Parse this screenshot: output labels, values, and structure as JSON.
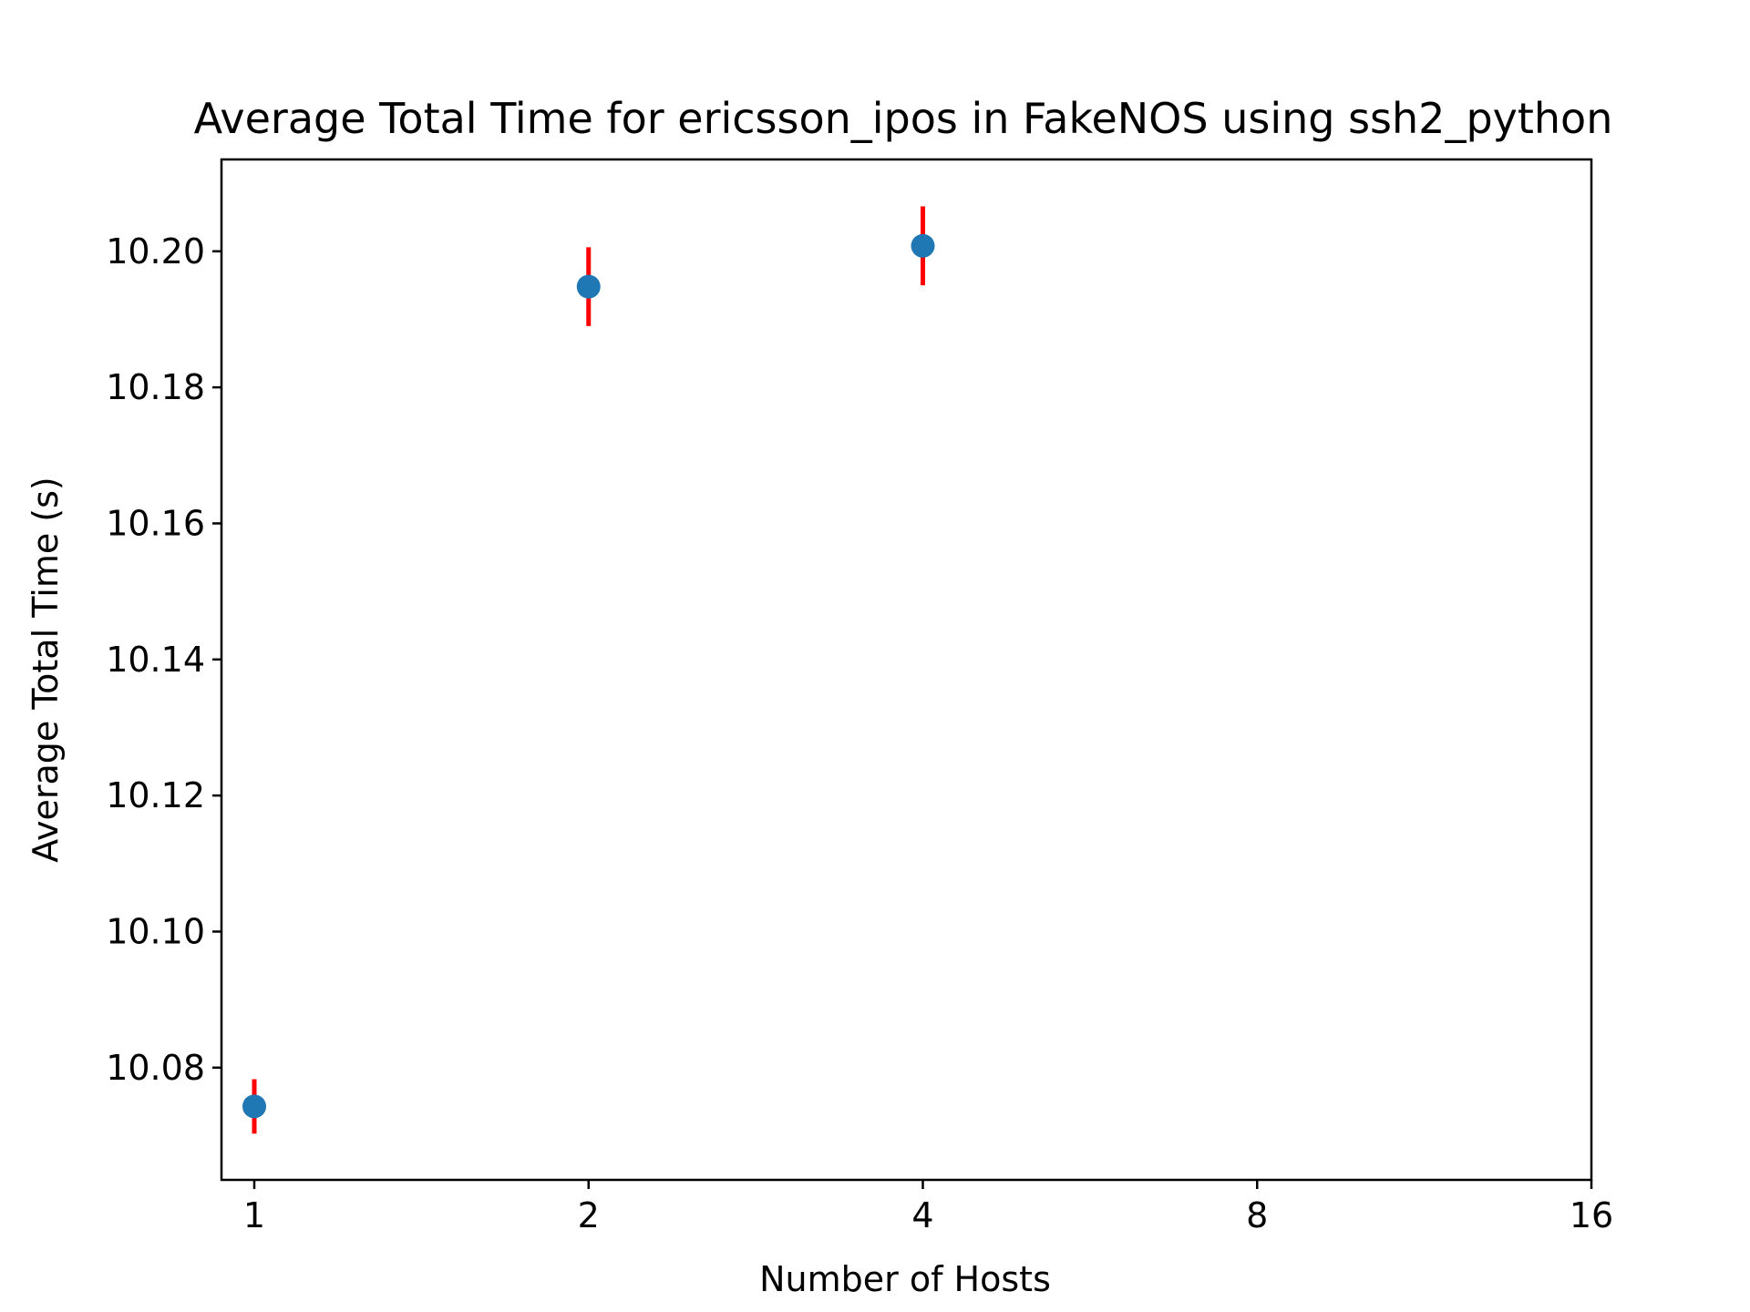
{
  "chart_data": {
    "type": "scatter",
    "title": "Average Total Time for ericsson_ipos in FakeNOS using ssh2_python",
    "xlabel": "Number of Hosts",
    "ylabel": "Average Total Time (s)",
    "x_scale": "log2",
    "x_ticks": [
      1,
      2,
      4,
      8,
      16
    ],
    "x_tick_labels": [
      "1",
      "2",
      "4",
      "8",
      "16"
    ],
    "y_ticks": [
      10.08,
      10.1,
      10.12,
      10.14,
      10.16,
      10.18,
      10.2
    ],
    "y_tick_labels": [
      "10.08",
      "10.10",
      "10.12",
      "10.14",
      "10.16",
      "10.18",
      "10.20"
    ],
    "xlim": [
      1,
      16
    ],
    "ylim": [
      10.0635,
      10.2135
    ],
    "grid": false,
    "series": [
      {
        "x": [
          1,
          2,
          4
        ],
        "y": [
          10.0743,
          10.1948,
          10.2008
        ],
        "yerr": [
          0.004,
          0.0058,
          0.0058
        ],
        "marker_color": "#1f77b4",
        "errorbar_color": "#ff0000"
      }
    ]
  }
}
